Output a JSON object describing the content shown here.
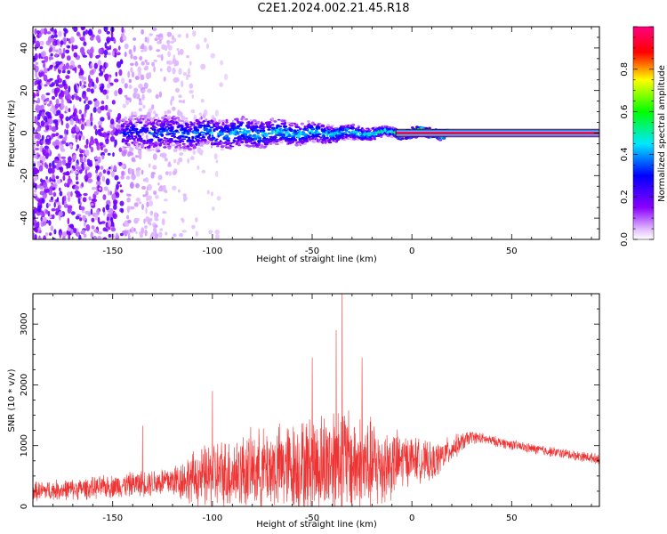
{
  "title": "C2E1.2024.002.21.45.R18",
  "chart_data": [
    {
      "type": "heatmap",
      "title": "C2E1.2024.002.21.45.R18",
      "xlabel": "Height of straight line (km)",
      "ylabel": "Frequency (Hz)",
      "xlim": [
        -190,
        94
      ],
      "ylim": [
        -50,
        50
      ],
      "xticks": [
        -150,
        -100,
        -50,
        0,
        50
      ],
      "yticks": [
        -40,
        -20,
        0,
        20,
        40
      ],
      "colorbar": {
        "label": "Normalized spectral amplitude",
        "ticks": [
          0.0,
          0.2,
          0.4,
          0.6,
          0.8
        ],
        "range": [
          0,
          1
        ],
        "placement": "right",
        "colormap": [
          "#ffffff",
          "#e0b8ff",
          "#8a00ff",
          "#0000ff",
          "#00e8ff",
          "#00ff00",
          "#ffff00",
          "#ff0000",
          "#ff0080"
        ]
      },
      "features": {
        "noise_region_x": [
          -190,
          -105
        ],
        "band_center_hz": 0,
        "band_halfwidth_hz": {
          "at_-140": 6,
          "at_-80": 5,
          "at_-40": 3,
          "at_-10": 1.5,
          "at_0_to_94": 1.5
        },
        "band_peak_amplitude": {
          "at_-140": 0.3,
          "at_-80": 0.45,
          "at_-40": 0.45,
          "at_-10": 0.55,
          "at_0_to_94": 0.95
        }
      }
    },
    {
      "type": "line",
      "xlabel": "Height of straight line (km)",
      "ylabel": "SNR (10 * v/v)",
      "xlim": [
        -190,
        94
      ],
      "ylim": [
        0,
        3500
      ],
      "xticks": [
        -150,
        -100,
        -50,
        0,
        50
      ],
      "yticks": [
        0,
        1000,
        2000,
        3000
      ],
      "color": "#ee3333",
      "envelope_x": [
        -190,
        -160,
        -135,
        -120,
        -100,
        -80,
        -60,
        -45,
        -38,
        -35,
        -30,
        -20,
        -10,
        0,
        10,
        20,
        30,
        40,
        60,
        80,
        94
      ],
      "envelope_mean": [
        250,
        300,
        380,
        420,
        500,
        600,
        650,
        700,
        800,
        800,
        700,
        650,
        700,
        800,
        700,
        950,
        1150,
        1080,
        950,
        850,
        780
      ],
      "envelope_amp": [
        150,
        170,
        200,
        260,
        550,
        600,
        700,
        800,
        900,
        900,
        800,
        750,
        550,
        350,
        300,
        200,
        100,
        80,
        80,
        80,
        80
      ],
      "peaks": [
        {
          "x": -135,
          "y": 1330
        },
        {
          "x": -35,
          "y": 3500
        },
        {
          "x": -38,
          "y": 2900
        },
        {
          "x": -50,
          "y": 2450
        },
        {
          "x": -25,
          "y": 2450
        },
        {
          "x": -100,
          "y": 1900
        }
      ]
    }
  ]
}
